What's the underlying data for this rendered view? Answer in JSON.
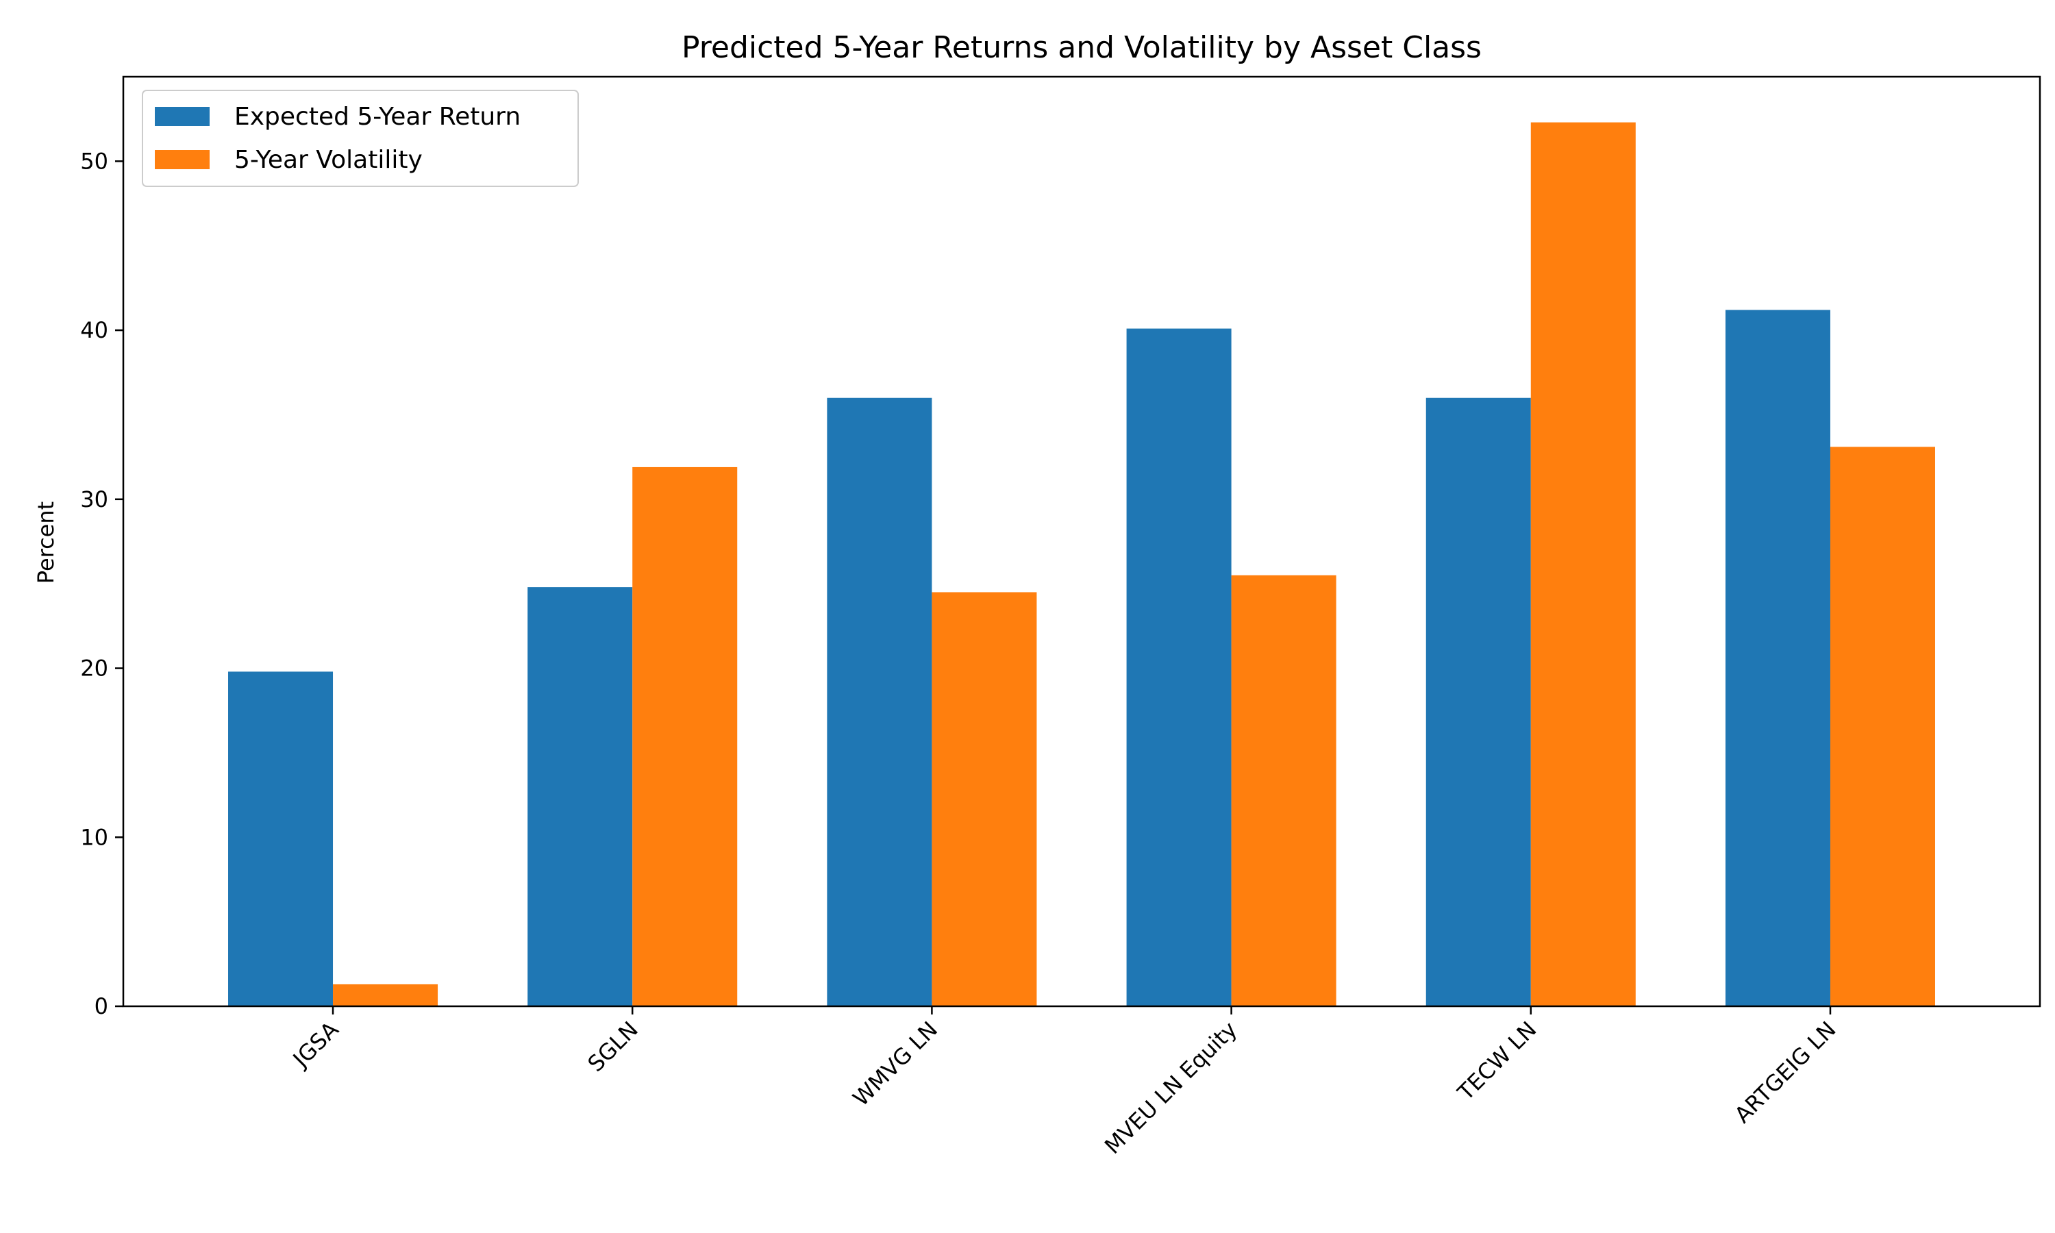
{
  "chart_data": {
    "type": "bar",
    "title": "Predicted 5-Year Returns and Volatility by Asset Class",
    "xlabel": "",
    "ylabel": "Percent",
    "ylim": [
      0,
      55
    ],
    "yticks": [
      0,
      10,
      20,
      30,
      40,
      50
    ],
    "categories": [
      "JGSA",
      "SGLN",
      "WMVG LN",
      "MVEU LN Equity",
      "TECW LN",
      "ARTGEIG LN"
    ],
    "series": [
      {
        "name": "Expected 5-Year Return",
        "color": "#1f77b4",
        "values": [
          19.8,
          24.8,
          36.0,
          40.1,
          36.0,
          41.2
        ]
      },
      {
        "name": "5-Year Volatility",
        "color": "#ff7f0e",
        "values": [
          1.3,
          31.9,
          24.5,
          25.5,
          52.3,
          33.1
        ]
      }
    ],
    "grid": false,
    "legend_position": "top-left"
  }
}
